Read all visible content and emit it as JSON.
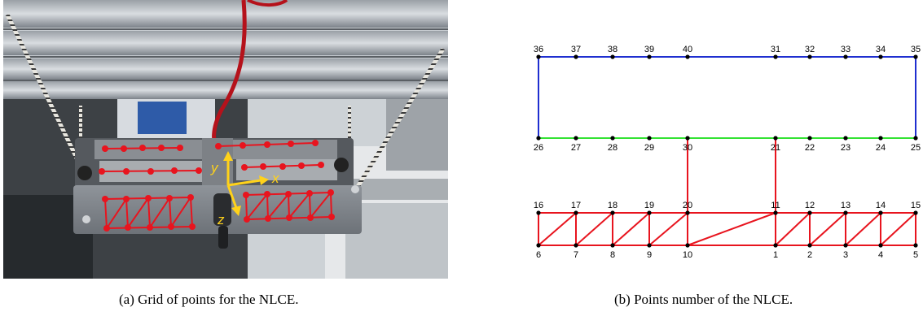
{
  "photo": {
    "axis_labels": {
      "x": "x",
      "y": "y",
      "z": "z"
    },
    "grid_color": "#e8141e",
    "axis_color": "#ffd21a"
  },
  "captions": {
    "a": "(a)  Grid of points for the NLCE.",
    "b": "(b)  Points number of the NLCE."
  },
  "graph": {
    "colors": {
      "blue": "#1f2fd0",
      "green": "#33e233",
      "red": "#e8141e",
      "node": "#000000"
    },
    "nodes": [
      {
        "id": "1",
        "label": "1"
      },
      {
        "id": "2",
        "label": "2"
      },
      {
        "id": "3",
        "label": "3"
      },
      {
        "id": "4",
        "label": "4"
      },
      {
        "id": "5",
        "label": "5"
      },
      {
        "id": "6",
        "label": "6"
      },
      {
        "id": "7",
        "label": "7"
      },
      {
        "id": "8",
        "label": "8"
      },
      {
        "id": "9",
        "label": "9"
      },
      {
        "id": "10",
        "label": "10"
      },
      {
        "id": "11",
        "label": "11"
      },
      {
        "id": "12",
        "label": "12"
      },
      {
        "id": "13",
        "label": "13"
      },
      {
        "id": "14",
        "label": "14"
      },
      {
        "id": "15",
        "label": "15"
      },
      {
        "id": "16",
        "label": "16"
      },
      {
        "id": "17",
        "label": "17"
      },
      {
        "id": "18",
        "label": "18"
      },
      {
        "id": "19",
        "label": "19"
      },
      {
        "id": "20",
        "label": "20"
      },
      {
        "id": "21",
        "label": "21"
      },
      {
        "id": "22",
        "label": "22"
      },
      {
        "id": "23",
        "label": "23"
      },
      {
        "id": "24",
        "label": "24"
      },
      {
        "id": "25",
        "label": "25"
      },
      {
        "id": "26",
        "label": "26"
      },
      {
        "id": "27",
        "label": "27"
      },
      {
        "id": "28",
        "label": "28"
      },
      {
        "id": "29",
        "label": "29"
      },
      {
        "id": "30",
        "label": "30"
      },
      {
        "id": "31",
        "label": "31"
      },
      {
        "id": "32",
        "label": "32"
      },
      {
        "id": "33",
        "label": "33"
      },
      {
        "id": "34",
        "label": "34"
      },
      {
        "id": "35",
        "label": "35"
      },
      {
        "id": "36",
        "label": "36"
      },
      {
        "id": "37",
        "label": "37"
      },
      {
        "id": "38",
        "label": "38"
      },
      {
        "id": "39",
        "label": "39"
      },
      {
        "id": "40",
        "label": "40"
      }
    ],
    "edges": [
      [
        "36",
        "35",
        "blue"
      ],
      [
        "36",
        "26",
        "blue"
      ],
      [
        "35",
        "25",
        "blue"
      ],
      [
        "26",
        "25",
        "green"
      ],
      [
        "30",
        "20",
        "red"
      ],
      [
        "21",
        "11",
        "red"
      ],
      [
        "16",
        "15",
        "red"
      ],
      [
        "6",
        "5",
        "red"
      ],
      [
        "16",
        "6",
        "red"
      ],
      [
        "17",
        "7",
        "red"
      ],
      [
        "18",
        "8",
        "red"
      ],
      [
        "19",
        "9",
        "red"
      ],
      [
        "20",
        "10",
        "red"
      ],
      [
        "11",
        "1",
        "red"
      ],
      [
        "12",
        "2",
        "red"
      ],
      [
        "13",
        "3",
        "red"
      ],
      [
        "14",
        "4",
        "red"
      ],
      [
        "15",
        "5",
        "red"
      ],
      [
        "6",
        "17",
        "red"
      ],
      [
        "7",
        "18",
        "red"
      ],
      [
        "8",
        "19",
        "red"
      ],
      [
        "9",
        "20",
        "red"
      ],
      [
        "10",
        "11",
        "red"
      ],
      [
        "1",
        "12",
        "red"
      ],
      [
        "2",
        "13",
        "red"
      ],
      [
        "3",
        "14",
        "red"
      ],
      [
        "4",
        "15",
        "red"
      ]
    ]
  }
}
